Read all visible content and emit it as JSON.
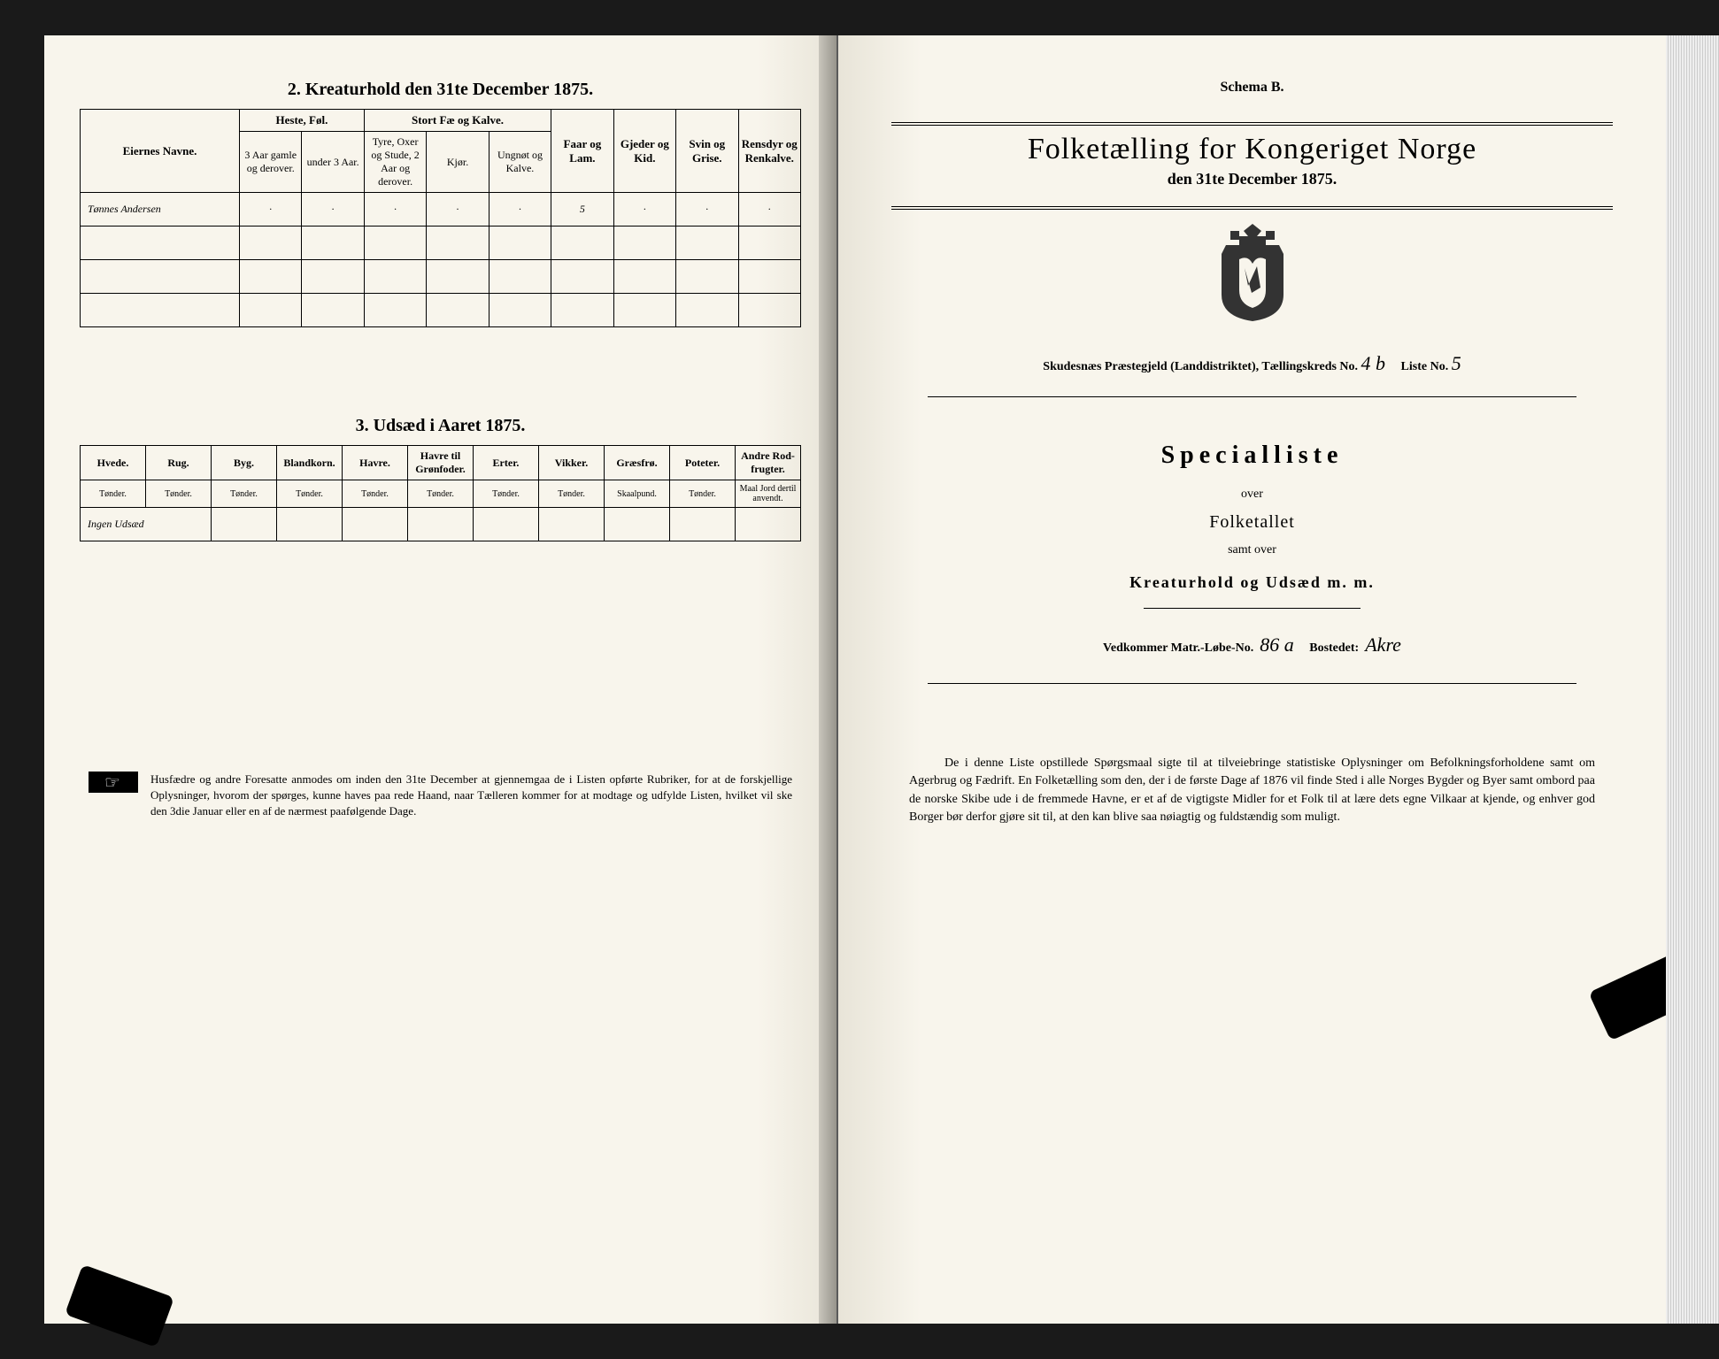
{
  "left": {
    "section2_title": "2.  Kreaturhold den 31te December 1875.",
    "table2": {
      "col_name_header": "Eiernes Navne.",
      "group_headers": [
        "Heste, Føl.",
        "Stort Fæ og Kalve.",
        "Faar og Lam.",
        "Gjeder og Kid.",
        "Svin og Grise.",
        "Rensdyr og Renkalve."
      ],
      "sub_headers": [
        "3 Aar gamle og derover.",
        "under 3 Aar.",
        "Tyre, Oxer og Stude, 2 Aar og derover.",
        "Kjør.",
        "Ungnøt og Kalve."
      ],
      "rows": [
        {
          "name": "Tønnes Andersen",
          "cells": [
            "·",
            "·",
            "·",
            "·",
            "·",
            "5",
            "·",
            "·",
            "·"
          ]
        },
        {
          "name": "",
          "cells": [
            "",
            "",
            "",
            "",
            "",
            "",
            "",
            "",
            ""
          ]
        },
        {
          "name": "",
          "cells": [
            "",
            "",
            "",
            "",
            "",
            "",
            "",
            "",
            ""
          ]
        },
        {
          "name": "",
          "cells": [
            "",
            "",
            "",
            "",
            "",
            "",
            "",
            "",
            ""
          ]
        }
      ]
    },
    "section3_title": "3.  Udsæd i Aaret 1875.",
    "table3": {
      "headers": [
        "Hvede.",
        "Rug.",
        "Byg.",
        "Blandkorn.",
        "Havre.",
        "Havre til Grønfoder.",
        "Erter.",
        "Vikker.",
        "Græsfrø.",
        "Poteter.",
        "Andre Rod-frugter."
      ],
      "units": [
        "Tønder.",
        "Tønder.",
        "Tønder.",
        "Tønder.",
        "Tønder.",
        "Tønder.",
        "Tønder.",
        "Tønder.",
        "Skaalpund.",
        "Tønder.",
        "Maal Jord dertil anvendt."
      ],
      "row": [
        "Ingen Udsæd",
        "",
        "",
        "",
        "",
        "",
        "",
        "",
        "",
        "",
        ""
      ]
    },
    "rubric": "Husfædre og andre Foresatte anmodes om inden den 31te December at gjennemgaa de i Listen opførte Rubriker, for at de forskjellige Oplysninger, hvorom der spørges, kunne haves paa rede Haand, naar Tælleren kommer for at modtage og udfylde Listen, hvilket vil ske den 3die Januar eller en af de nærmest paafølgende Dage."
  },
  "right": {
    "schema": "Schema B.",
    "main_title": "Folketælling for Kongeriget Norge",
    "date_line": "den 31te December 1875.",
    "district_prefix": "Skudesnæs Præstegjeld (Landdistriktet),  Tællingskreds No.",
    "kreds_no": "4 b",
    "liste_label": "Liste No.",
    "liste_no": "5",
    "specialliste": "Specialliste",
    "over": "over",
    "folketallet": "Folketallet",
    "samt_over": "samt over",
    "kreatur": "Kreaturhold og Udsæd m. m.",
    "matr_label": "Vedkommer Matr.-Løbe-No.",
    "matr_no": "86 a",
    "bostedet_label": "Bostedet:",
    "bostedet": "Akre",
    "body": "De i denne Liste opstillede Spørgsmaal sigte til at tilveiebringe statistiske Oplysninger om Befolkningsforholdene samt om Agerbrug og Fædrift.  En Folketælling som den, der i de første Dage af 1876 vil finde Sted i alle Norges Bygder og Byer samt ombord paa de norske Skibe ude i de fremmede Havne, er et af de vigtigste Midler for et Folk til at lære dets egne Vilkaar at kjende, og enhver god Borger bør derfor gjøre sit til, at den kan blive saa nøiagtig og fuldstændig som muligt."
  },
  "colors": {
    "paper": "#f8f5ec",
    "ink": "#000000",
    "background": "#1a1a1a"
  }
}
